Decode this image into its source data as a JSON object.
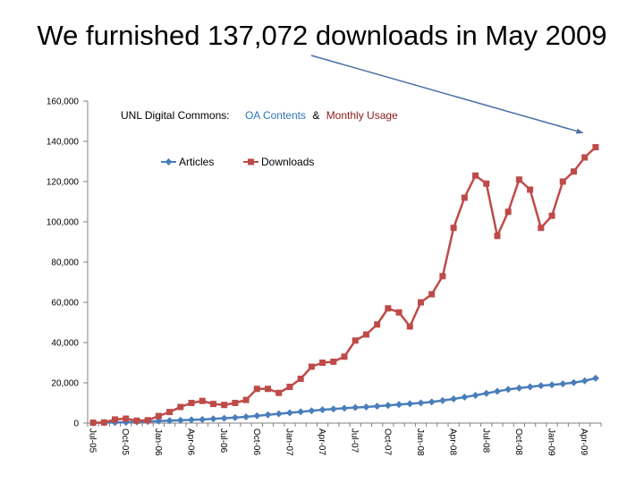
{
  "slide": {
    "title": "We furnished 137,072 downloads in May 2009"
  },
  "chart_data": {
    "type": "line",
    "subtitle_prefix": "UNL Digital Commons:",
    "subtitle_part1": "OA Contents",
    "subtitle_amp": "&",
    "subtitle_part2": "Monthly Usage",
    "ylim": [
      0,
      160000
    ],
    "y_ticks": [
      "0",
      "20,000",
      "40,000",
      "60,000",
      "80,000",
      "100,000",
      "120,000",
      "140,000",
      "160,000"
    ],
    "x": [
      "Jul-05",
      "Aug-05",
      "Sep-05",
      "Oct-05",
      "Nov-05",
      "Dec-05",
      "Jan-06",
      "Feb-06",
      "Mar-06",
      "Apr-06",
      "May-06",
      "Jun-06",
      "Jul-06",
      "Aug-06",
      "Sep-06",
      "Oct-06",
      "Nov-06",
      "Dec-06",
      "Jan-07",
      "Feb-07",
      "Mar-07",
      "Apr-07",
      "May-07",
      "Jun-07",
      "Jul-07",
      "Aug-07",
      "Sep-07",
      "Oct-07",
      "Nov-07",
      "Dec-07",
      "Jan-08",
      "Feb-08",
      "Mar-08",
      "Apr-08",
      "May-08",
      "Jun-08",
      "Jul-08",
      "Aug-08",
      "Sep-08",
      "Oct-08",
      "Nov-08",
      "Dec-08",
      "Jan-09",
      "Feb-09",
      "Mar-09",
      "Apr-09",
      "May-09"
    ],
    "x_tick_labels": [
      "Jul-05",
      "Oct-05",
      "Jan-06",
      "Apr-06",
      "Jul-06",
      "Oct-06",
      "Jan-07",
      "Apr-07",
      "Jul-07",
      "Oct-07",
      "Jan-08",
      "Apr-08",
      "Jul-08",
      "Oct-08",
      "Jan-09",
      "Apr-09"
    ],
    "legend_placement": "top-left",
    "series": [
      {
        "name": "Articles",
        "color": "#4a7ebb",
        "marker": "diamond",
        "values": [
          100,
          200,
          300,
          400,
          600,
          800,
          1000,
          1200,
          1400,
          1600,
          1800,
          2100,
          2400,
          2700,
          3100,
          3600,
          4100,
          4600,
          5100,
          5600,
          6100,
          6600,
          7000,
          7400,
          7700,
          8000,
          8400,
          8800,
          9200,
          9600,
          10000,
          10500,
          11200,
          12000,
          12900,
          13800,
          14800,
          15800,
          16700,
          17400,
          18000,
          18600,
          19000,
          19500,
          20100,
          21000,
          22300
        ]
      },
      {
        "name": "Downloads",
        "color": "#be4b48",
        "marker": "square",
        "values": [
          200,
          300,
          1800,
          2200,
          1200,
          1400,
          3500,
          5500,
          8000,
          10000,
          11000,
          9500,
          9000,
          10000,
          11500,
          17000,
          17000,
          15000,
          18000,
          22000,
          28000,
          30000,
          30500,
          33000,
          41000,
          44000,
          49000,
          57000,
          55000,
          48000,
          60000,
          64000,
          73000,
          97000,
          112000,
          123000,
          119000,
          93000,
          105000,
          121000,
          116000,
          97000,
          103000,
          120000,
          125000,
          132000,
          137072
        ]
      }
    ],
    "annotation": "arrow pointing from title to the May-09 peak"
  }
}
